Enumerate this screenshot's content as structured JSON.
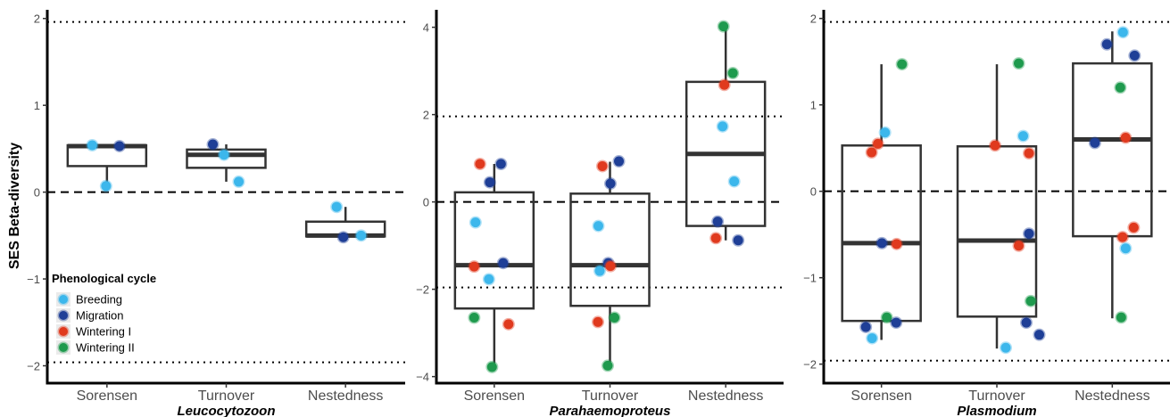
{
  "ylabel": "SES Beta-diversity",
  "legend": {
    "title": "Phenological cycle",
    "items": [
      {
        "label": "Breeding",
        "color": "#3cb7ec"
      },
      {
        "label": "Migration",
        "color": "#1f3f97"
      },
      {
        "label": "Wintering I",
        "color": "#e03a1e"
      },
      {
        "label": "Wintering II",
        "color": "#1f9a4e"
      }
    ]
  },
  "chart_data": [
    {
      "type": "box",
      "title": "Leucocytozoon",
      "ylim": [
        -2.2,
        2.1
      ],
      "yticks": [
        -2,
        -1,
        0,
        1,
        2
      ],
      "hlines_dotted": [
        1.96,
        -1.96
      ],
      "hline_dashed": 0,
      "categories": [
        "Sorensen",
        "Turnover",
        "Nestedness"
      ],
      "boxes": [
        {
          "q1": 0.3,
          "median": 0.53,
          "q3": 0.54,
          "lower": 0.07,
          "upper": 0.54
        },
        {
          "q1": 0.28,
          "median": 0.43,
          "q3": 0.49,
          "lower": 0.12,
          "upper": 0.55
        },
        {
          "q1": -0.51,
          "median": -0.5,
          "q3": -0.34,
          "lower": -0.52,
          "upper": -0.17
        }
      ],
      "points": [
        {
          "cat": 0,
          "dx": -0.33,
          "y": 0.54,
          "group": "Breeding"
        },
        {
          "cat": 0,
          "dx": 0.28,
          "y": 0.53,
          "group": "Migration"
        },
        {
          "cat": 0,
          "dx": -0.02,
          "y": 0.07,
          "group": "Breeding"
        },
        {
          "cat": 1,
          "dx": -0.3,
          "y": 0.55,
          "group": "Migration"
        },
        {
          "cat": 1,
          "dx": -0.05,
          "y": 0.43,
          "group": "Breeding"
        },
        {
          "cat": 1,
          "dx": 0.28,
          "y": 0.12,
          "group": "Breeding"
        },
        {
          "cat": 2,
          "dx": -0.2,
          "y": -0.17,
          "group": "Breeding"
        },
        {
          "cat": 2,
          "dx": -0.05,
          "y": -0.52,
          "group": "Migration"
        },
        {
          "cat": 2,
          "dx": 0.35,
          "y": -0.5,
          "group": "Breeding"
        }
      ]
    },
    {
      "type": "box",
      "title": "Parahaemoproteus",
      "ylim": [
        -4.15,
        4.4
      ],
      "yticks": [
        -4,
        -2,
        0,
        2,
        4
      ],
      "hlines_dotted": [
        1.96,
        -1.96
      ],
      "hline_dashed": 0,
      "categories": [
        "Sorensen",
        "Turnover",
        "Nestedness"
      ],
      "boxes": [
        {
          "q1": -2.44,
          "median": -1.45,
          "q3": 0.22,
          "lower": -3.78,
          "upper": 0.87
        },
        {
          "q1": -2.38,
          "median": -1.45,
          "q3": 0.19,
          "lower": -3.72,
          "upper": 0.92
        },
        {
          "q1": -0.55,
          "median": 1.1,
          "q3": 2.75,
          "lower": -0.88,
          "upper": 4.02
        }
      ],
      "points": [
        {
          "cat": 0,
          "dx": -0.32,
          "y": 0.87,
          "group": "Wintering I"
        },
        {
          "cat": 0,
          "dx": -0.1,
          "y": 0.45,
          "group": "Migration"
        },
        {
          "cat": 0,
          "dx": 0.15,
          "y": 0.87,
          "group": "Migration"
        },
        {
          "cat": 0,
          "dx": -0.42,
          "y": -0.47,
          "group": "Breeding"
        },
        {
          "cat": 0,
          "dx": -0.45,
          "y": -1.48,
          "group": "Wintering I"
        },
        {
          "cat": 0,
          "dx": 0.2,
          "y": -1.4,
          "group": "Migration"
        },
        {
          "cat": 0,
          "dx": -0.12,
          "y": -1.77,
          "group": "Breeding"
        },
        {
          "cat": 0,
          "dx": -0.45,
          "y": -2.65,
          "group": "Wintering II"
        },
        {
          "cat": 0,
          "dx": 0.32,
          "y": -2.8,
          "group": "Wintering I"
        },
        {
          "cat": 0,
          "dx": -0.05,
          "y": -3.78,
          "group": "Wintering II"
        },
        {
          "cat": 1,
          "dx": -0.17,
          "y": 0.82,
          "group": "Wintering I"
        },
        {
          "cat": 1,
          "dx": 0.2,
          "y": 0.93,
          "group": "Migration"
        },
        {
          "cat": 1,
          "dx": 0.01,
          "y": 0.42,
          "group": "Migration"
        },
        {
          "cat": 1,
          "dx": -0.26,
          "y": -0.55,
          "group": "Breeding"
        },
        {
          "cat": 1,
          "dx": -0.04,
          "y": -1.4,
          "group": "Migration"
        },
        {
          "cat": 1,
          "dx": 0.01,
          "y": -1.47,
          "group": "Wintering I"
        },
        {
          "cat": 1,
          "dx": -0.23,
          "y": -1.58,
          "group": "Breeding"
        },
        {
          "cat": 1,
          "dx": -0.27,
          "y": -2.75,
          "group": "Wintering I"
        },
        {
          "cat": 1,
          "dx": 0.1,
          "y": -2.65,
          "group": "Wintering II"
        },
        {
          "cat": 1,
          "dx": -0.05,
          "y": -3.75,
          "group": "Wintering II"
        },
        {
          "cat": 2,
          "dx": -0.05,
          "y": 4.02,
          "group": "Wintering II"
        },
        {
          "cat": 2,
          "dx": 0.16,
          "y": 2.95,
          "group": "Wintering II"
        },
        {
          "cat": 2,
          "dx": -0.03,
          "y": 2.68,
          "group": "Wintering I"
        },
        {
          "cat": 2,
          "dx": -0.07,
          "y": 1.73,
          "group": "Breeding"
        },
        {
          "cat": 2,
          "dx": 0.19,
          "y": 0.47,
          "group": "Breeding"
        },
        {
          "cat": 2,
          "dx": -0.18,
          "y": -0.45,
          "group": "Migration"
        },
        {
          "cat": 2,
          "dx": -0.22,
          "y": -0.83,
          "group": "Wintering I"
        },
        {
          "cat": 2,
          "dx": 0.28,
          "y": -0.88,
          "group": "Migration"
        }
      ]
    },
    {
      "type": "box",
      "title": "Plasmodium",
      "ylim": [
        -2.22,
        2.1
      ],
      "yticks": [
        -2,
        -1,
        0,
        1,
        2
      ],
      "hlines_dotted": [
        1.96,
        -1.96
      ],
      "hline_dashed": 0,
      "categories": [
        "Sorensen",
        "Turnover",
        "Nestedness"
      ],
      "boxes": [
        {
          "q1": -1.5,
          "median": -0.6,
          "q3": 0.53,
          "lower": -1.72,
          "upper": 1.47
        },
        {
          "q1": -1.45,
          "median": -0.57,
          "q3": 0.52,
          "lower": -1.82,
          "upper": 1.47
        },
        {
          "q1": -0.52,
          "median": 0.6,
          "q3": 1.48,
          "lower": -1.47,
          "upper": 1.85
        }
      ],
      "points": [
        {
          "cat": 0,
          "dx": 0.46,
          "y": 1.47,
          "group": "Wintering II"
        },
        {
          "cat": 0,
          "dx": 0.08,
          "y": 0.68,
          "group": "Breeding"
        },
        {
          "cat": 0,
          "dx": -0.08,
          "y": 0.55,
          "group": "Wintering I"
        },
        {
          "cat": 0,
          "dx": -0.22,
          "y": 0.45,
          "group": "Wintering I"
        },
        {
          "cat": 0,
          "dx": 0.01,
          "y": -0.6,
          "group": "Migration"
        },
        {
          "cat": 0,
          "dx": 0.34,
          "y": -0.61,
          "group": "Wintering I"
        },
        {
          "cat": 0,
          "dx": 0.12,
          "y": -1.46,
          "group": "Wintering II"
        },
        {
          "cat": 0,
          "dx": 0.33,
          "y": -1.52,
          "group": "Migration"
        },
        {
          "cat": 0,
          "dx": -0.35,
          "y": -1.57,
          "group": "Migration"
        },
        {
          "cat": 0,
          "dx": -0.21,
          "y": -1.7,
          "group": "Breeding"
        },
        {
          "cat": 1,
          "dx": 0.49,
          "y": 1.48,
          "group": "Wintering II"
        },
        {
          "cat": 1,
          "dx": 0.59,
          "y": 0.64,
          "group": "Breeding"
        },
        {
          "cat": 1,
          "dx": -0.04,
          "y": 0.53,
          "group": "Wintering I"
        },
        {
          "cat": 1,
          "dx": 0.72,
          "y": 0.44,
          "group": "Wintering I"
        },
        {
          "cat": 1,
          "dx": 0.72,
          "y": -0.49,
          "group": "Migration"
        },
        {
          "cat": 1,
          "dx": 0.49,
          "y": -0.63,
          "group": "Wintering I"
        },
        {
          "cat": 1,
          "dx": 0.76,
          "y": -1.27,
          "group": "Wintering II"
        },
        {
          "cat": 1,
          "dx": 0.66,
          "y": -1.52,
          "group": "Migration"
        },
        {
          "cat": 1,
          "dx": 0.95,
          "y": -1.66,
          "group": "Migration"
        },
        {
          "cat": 1,
          "dx": 0.2,
          "y": -1.81,
          "group": "Breeding"
        },
        {
          "cat": 2,
          "dx": -0.12,
          "y": 1.7,
          "group": "Migration"
        },
        {
          "cat": 2,
          "dx": 0.24,
          "y": 1.84,
          "group": "Breeding"
        },
        {
          "cat": 2,
          "dx": 0.5,
          "y": 1.57,
          "group": "Migration"
        },
        {
          "cat": 2,
          "dx": 0.18,
          "y": 1.2,
          "group": "Wintering II"
        },
        {
          "cat": 2,
          "dx": 0.3,
          "y": 0.62,
          "group": "Wintering I"
        },
        {
          "cat": 2,
          "dx": -0.39,
          "y": 0.56,
          "group": "Migration"
        },
        {
          "cat": 2,
          "dx": 0.23,
          "y": -0.53,
          "group": "Wintering I"
        },
        {
          "cat": 2,
          "dx": 0.3,
          "y": -0.66,
          "group": "Breeding"
        },
        {
          "cat": 2,
          "dx": 0.48,
          "y": -0.42,
          "group": "Wintering I"
        },
        {
          "cat": 2,
          "dx": 0.2,
          "y": -1.46,
          "group": "Wintering II"
        }
      ]
    }
  ]
}
